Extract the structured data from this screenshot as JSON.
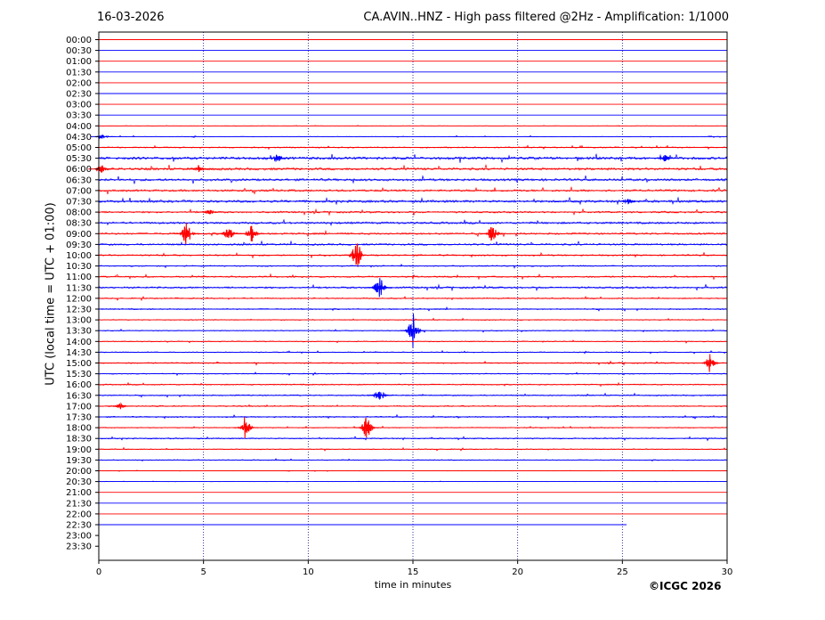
{
  "header": {
    "date": "16-03-2026",
    "title": "CA.AVIN..HNZ - High pass filtered @2Hz - Amplification: 1/1000"
  },
  "copyright": "©ICGC 2026",
  "colors": {
    "odd_trace": "#ff0000",
    "even_trace": "#0000ff",
    "grid": "#000080"
  },
  "chart_data": {
    "type": "line",
    "title": "CA.AVIN..HNZ - High pass filtered @2Hz - Amplification: 1/1000",
    "xlabel": "time in minutes",
    "ylabel": "UTC (local time = UTC + 01:00)",
    "xlim": [
      0,
      30
    ],
    "x_ticks": [
      0,
      5,
      10,
      15,
      20,
      25,
      30
    ],
    "grid": "vertical dotted at 5, 10, 15, 20, 25",
    "rows": [
      "00:00",
      "00:30",
      "01:00",
      "01:30",
      "02:00",
      "02:30",
      "03:00",
      "03:30",
      "04:00",
      "04:30",
      "05:00",
      "05:30",
      "06:00",
      "06:30",
      "07:00",
      "07:30",
      "08:00",
      "08:30",
      "09:00",
      "09:30",
      "10:00",
      "10:30",
      "11:00",
      "11:30",
      "12:00",
      "12:30",
      "13:00",
      "13:30",
      "14:00",
      "14:30",
      "15:00",
      "15:30",
      "16:00",
      "16:30",
      "17:00",
      "17:30",
      "18:00",
      "18:30",
      "19:00",
      "19:30",
      "20:00",
      "20:30",
      "21:00",
      "21:30",
      "22:00",
      "22:30",
      "23:00",
      "23:30"
    ],
    "noise_level": [
      0.05,
      0.05,
      0.05,
      0.05,
      0.05,
      0.05,
      0.05,
      0.05,
      0.1,
      0.2,
      0.4,
      0.9,
      0.8,
      0.8,
      0.7,
      0.8,
      0.6,
      0.7,
      0.6,
      0.6,
      0.5,
      0.4,
      0.5,
      0.6,
      0.4,
      0.4,
      0.3,
      0.3,
      0.3,
      0.3,
      0.4,
      0.3,
      0.4,
      0.4,
      0.4,
      0.4,
      0.3,
      0.4,
      0.3,
      0.3,
      0.15,
      0.1,
      0.05,
      0.05,
      0.05,
      0.05,
      0,
      0
    ],
    "trace_end_minute": [
      30,
      30,
      30,
      30,
      30,
      30,
      30,
      30,
      30,
      30,
      30,
      30,
      30,
      30,
      30,
      30,
      30,
      30,
      30,
      30,
      30,
      30,
      30,
      30,
      30,
      30,
      30,
      30,
      30,
      30,
      30,
      30,
      30,
      30,
      30,
      30,
      30,
      30,
      30,
      30,
      30,
      30,
      30,
      30,
      30,
      25.2,
      0,
      0
    ],
    "events": [
      {
        "row": "04:30",
        "minute": 0.2,
        "amplitude": 0.3
      },
      {
        "row": "05:30",
        "minute": 8.5,
        "amplitude": 0.5
      },
      {
        "row": "05:30",
        "minute": 27.0,
        "amplitude": 0.4
      },
      {
        "row": "06:00",
        "minute": 0.1,
        "amplitude": 0.5
      },
      {
        "row": "06:00",
        "minute": 4.8,
        "amplitude": 0.4
      },
      {
        "row": "07:30",
        "minute": 25.3,
        "amplitude": 0.5
      },
      {
        "row": "08:00",
        "minute": 5.3,
        "amplitude": 0.3
      },
      {
        "row": "09:00",
        "minute": 4.2,
        "amplitude": 1.4
      },
      {
        "row": "09:00",
        "minute": 6.2,
        "amplitude": 0.9
      },
      {
        "row": "09:00",
        "minute": 7.3,
        "amplitude": 1.0
      },
      {
        "row": "09:00",
        "minute": 18.8,
        "amplitude": 1.2
      },
      {
        "row": "10:00",
        "minute": 12.3,
        "amplitude": 1.6
      },
      {
        "row": "11:30",
        "minute": 13.4,
        "amplitude": 1.6
      },
      {
        "row": "13:30",
        "minute": 15.0,
        "amplitude": 2.2
      },
      {
        "row": "15:00",
        "minute": 29.2,
        "amplitude": 1.2
      },
      {
        "row": "16:30",
        "minute": 13.4,
        "amplitude": 0.9
      },
      {
        "row": "17:00",
        "minute": 1.0,
        "amplitude": 0.4
      },
      {
        "row": "18:00",
        "minute": 7.0,
        "amplitude": 1.5
      },
      {
        "row": "18:00",
        "minute": 12.8,
        "amplitude": 1.3
      }
    ]
  }
}
